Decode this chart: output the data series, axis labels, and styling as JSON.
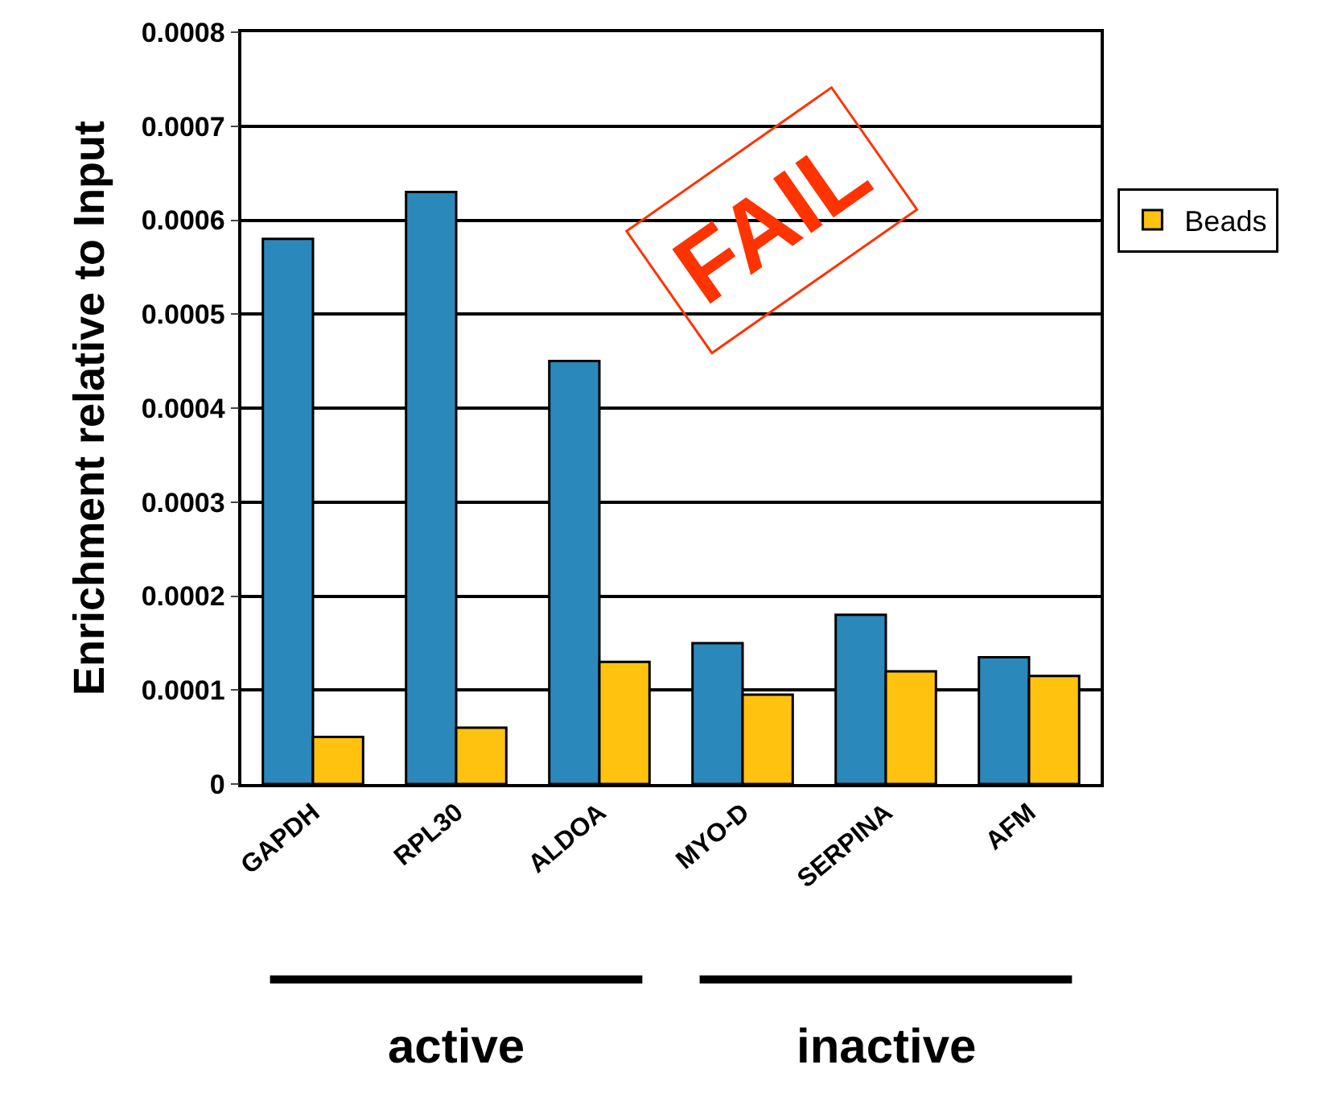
{
  "chart_data": {
    "type": "bar",
    "ylabel": "Enrichment relative to Input",
    "categories": [
      "GAPDH",
      "RPL30",
      "ALDOA",
      "MYO-D",
      "SERPINA",
      "AFM"
    ],
    "series": [
      {
        "color": "#2b88bb",
        "values": [
          0.00058,
          0.00063,
          0.00045,
          0.00015,
          0.00018,
          0.000135
        ]
      },
      {
        "name": "Beads",
        "color": "#ffc20e",
        "values": [
          5e-05,
          6e-05,
          0.00013,
          9.5e-05,
          0.00012,
          0.000115
        ]
      }
    ],
    "ylim": [
      0,
      0.0008
    ],
    "yticks": [
      0,
      0.0001,
      0.0002,
      0.0003,
      0.0004,
      0.0005,
      0.0006,
      0.0007,
      0.0008
    ],
    "grid": "y",
    "legend": "right",
    "annotations": [
      "active",
      "inactive",
      "FAIL"
    ]
  }
}
